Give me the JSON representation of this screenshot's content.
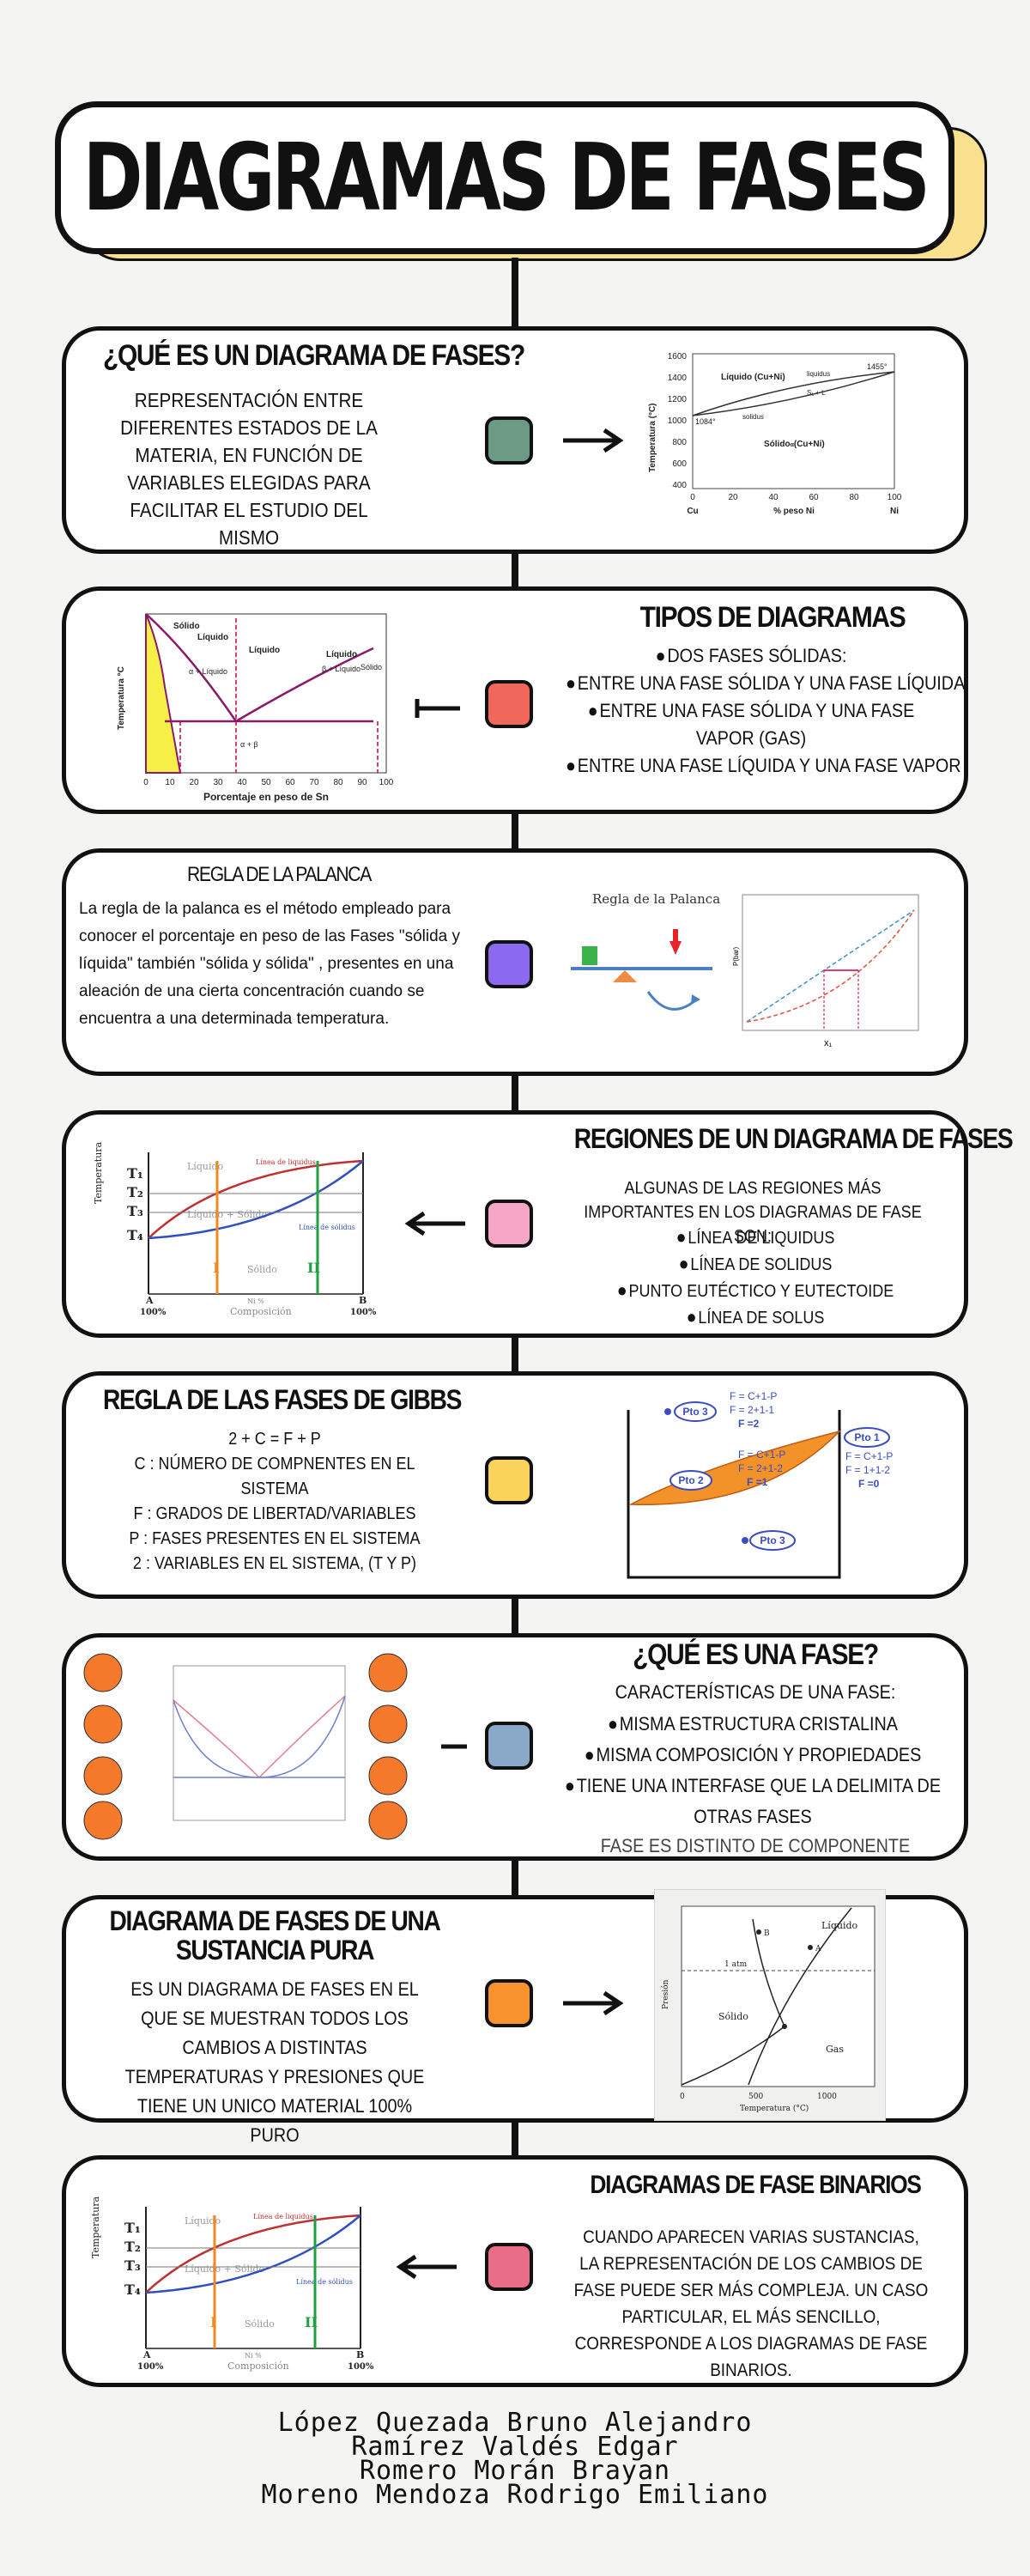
{
  "title": "DIAGRAMAS DE FASES",
  "colors": {
    "q": "#6c9a85",
    "tipos": "#f0675c",
    "palanca": "#8c6af0",
    "regiones": "#f6a6c6",
    "gibbs": "#fad35a",
    "fase": "#8aa9c8",
    "pura": "#f7922d",
    "binarios": "#ea6d87"
  },
  "sections": {
    "que_es": {
      "title": "¿QUÉ ES UN DIAGRAMA DE FASES?",
      "text": "REPRESENTACIÓN ENTRE DIFERENTES ESTADOS DE LA MATERIA, EN FUNCIÓN DE VARIABLES ELEGIDAS PARA FACILITAR EL ESTUDIO DEL MISMO"
    },
    "tipos": {
      "title": "TIPOS DE DIAGRAMAS",
      "items": [
        "DOS FASES SÓLIDAS:",
        "ENTRE UNA FASE SÓLIDA Y UNA FASE LÍQUIDA",
        "ENTRE UNA FASE SÓLIDA Y UNA FASE VAPOR (GAS)",
        "ENTRE UNA FASE LÍQUIDA Y UNA FASE VAPOR"
      ]
    },
    "palanca": {
      "title": "REGLA DE LA PALANCA",
      "text": "La regla de la palanca es el método empleado para conocer el porcentaje en peso de las Fases \"sólida y líquida\" también \"sólida y sólida\" , presentes en una aleación de una cierta concentración cuando se encuentra a una determinada temperatura.",
      "fig_label": "Regla de la Palanca"
    },
    "regiones": {
      "title": "REGIONES DE UN DIAGRAMA DE FASES",
      "intro": "ALGUNAS DE LAS REGIONES MÁS IMPORTANTES EN LOS DIAGRAMAS DE FASE SON:",
      "items": [
        "LÍNEA DE LIQUIDUS",
        "LÍNEA DE SOLIDUS",
        "PUNTO EUTÉCTICO Y EUTECTOIDE",
        "LÍNEA DE SOLUS"
      ]
    },
    "gibbs": {
      "title": "REGLA DE LAS FASES DE GIBBS",
      "lines": [
        "2 + C = F + P",
        "C : NÚMERO DE COMPNENTES EN EL SISTEMA",
        "F : GRADOS DE LIBERTAD/VARIABLES",
        "P : FASES PRESENTES EN EL SISTEMA",
        "2 : VARIABLES EN EL SISTEMA, (T Y P)"
      ]
    },
    "fase": {
      "title": "¿QUÉ ES UNA FASE?",
      "subtitle": "CARACTERÍSTICAS DE UNA FASE:",
      "items": [
        "MISMA ESTRUCTURA CRISTALINA",
        "MISMA COMPOSICIÓN Y PROPIEDADES",
        "TIENE UNA INTERFASE QUE LA DELIMITA DE OTRAS FASES"
      ],
      "note": "FASE ES DISTINTO DE COMPONENTE"
    },
    "pura": {
      "title": "DIAGRAMA DE FASES DE UNA SUSTANCIA PURA",
      "text": "ES UN DIAGRAMA DE FASES EN EL QUE SE MUESTRAN TODOS LOS CAMBIOS A DISTINTAS TEMPERATURAS Y PRESIONES QUE TIENE UN UNICO MATERIAL 100% PURO"
    },
    "binarios": {
      "title": "DIAGRAMAS DE FASE BINARIOS",
      "text": "CUANDO APARECEN VARIAS SUSTANCIAS, LA REPRESENTACIÓN DE LOS CAMBIOS DE FASE PUEDE SER MÁS COMPLEJA. UN CASO PARTICULAR, EL MÁS SENCILLO, CORRESPONDE A LOS DIAGRAMAS DE FASE BINARIOS."
    }
  },
  "fig_cuni": {
    "ylabel": "Temperatura (°C)",
    "xlabel": "% peso Ni",
    "left": "Cu",
    "right": "Ni",
    "liquid": "Líquido (Cu+Ni)",
    "solid": "Sólido",
    "solid_sub": "α",
    "solid_tail": "(Cu+Ni)",
    "liquidus": "liquidus",
    "solidus": "solidus",
    "alfa": "S₁ + L",
    "t_high": "1455°",
    "t_low": "1084°",
    "yticks": [
      "1600",
      "1400",
      "1200",
      "1000",
      "800",
      "600",
      "400"
    ],
    "xticks": [
      "0",
      "20",
      "40",
      "60",
      "80",
      "100"
    ]
  },
  "fig_snpb": {
    "ylabel": "Temperatura °C",
    "xlabel": "Porcentaje en peso de Sn",
    "solid": "Sólido",
    "liquido": "Líquido",
    "a_liq": "α + Líquido",
    "b_liq": "β + Líquido",
    "ab": "α + β",
    "xticks": [
      "0",
      "10",
      "20",
      "30",
      "40",
      "50",
      "60",
      "70",
      "80",
      "90",
      "100"
    ]
  },
  "fig_bin": {
    "ylabel": "Temperatura",
    "liquido": "Líquido",
    "liq_solid": "Líquido + Sólido",
    "solido": "Sólido",
    "liquidus": "Línea de liquidus",
    "solidus": "Línea de sólidus",
    "t1": "T₁",
    "t2": "T₂",
    "t3": "T₃",
    "t4": "T₄",
    "i": "I",
    "ii": "II",
    "a": "A",
    "a100": "100%",
    "b": "B",
    "b100": "100%",
    "comp": "Composición",
    "ni": "Ni %"
  },
  "fig_gibbs": {
    "p3a": "Pto 3",
    "p2": "Pto 2",
    "p1": "Pto 1",
    "p3b": "Pto 3",
    "e1": "F = C+1-P",
    "e2": "F = 2+1-1",
    "e3": "F =2",
    "e4": "F = C+1-P",
    "e5": "F = 2+1-2",
    "e6": "F =1",
    "e7": "F = C+1-P",
    "e8": "F = 1+1-2",
    "e9": "F =0"
  },
  "fig_pura": {
    "liquido": "Líquido",
    "solido": "Sólido",
    "gas": "Gas",
    "atm": "1 atm",
    "ylabel": "Presión",
    "xlabel": "Temperatura (°C)",
    "x0": "0",
    "x500": "500",
    "x1000": "1000",
    "a": "A",
    "b": "B"
  },
  "fig_palanca": {
    "ylabel": "P(bar)",
    "xlabel": "x₁"
  },
  "authors": [
    "López Quezada Bruno Alejandro",
    "Ramírez Valdés Edgar",
    "Romero Morán Brayan",
    "Moreno Mendoza Rodrigo Emiliano"
  ]
}
